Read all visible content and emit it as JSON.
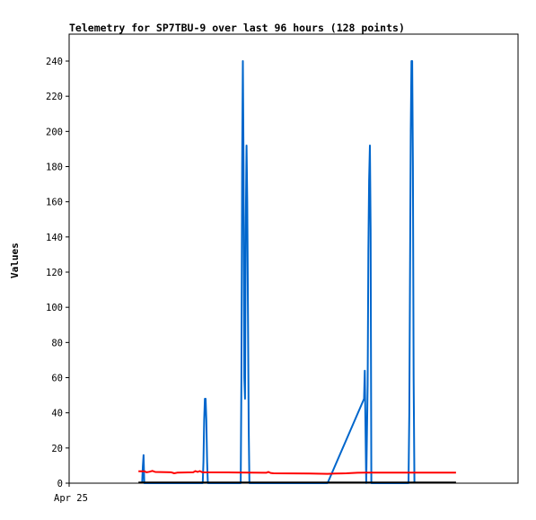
{
  "chart_data": {
    "type": "line",
    "title": "Telemetry for SP7TBU-9 over last 96 hours (128 points)",
    "ylabel": "Values",
    "xlabel": "",
    "x_tick_labels": [
      "Apr 25"
    ],
    "ylim": [
      0,
      255
    ],
    "yticks": [
      0,
      20,
      40,
      60,
      80,
      100,
      120,
      140,
      160,
      180,
      200,
      220,
      240
    ],
    "grid": false,
    "legend": "none",
    "x_unit": "hours from start of displayed window",
    "series": [
      {
        "color": "#0066cc",
        "points": [
          [
            10.0,
            0
          ],
          [
            10.1,
            9.5
          ],
          [
            10.2,
            16
          ],
          [
            10.3,
            0
          ],
          [
            10.4,
            0
          ],
          [
            18.3,
            0
          ],
          [
            18.4,
            12
          ],
          [
            18.5,
            36
          ],
          [
            18.6,
            48
          ],
          [
            18.7,
            48
          ],
          [
            18.8,
            36
          ],
          [
            18.9,
            12
          ],
          [
            19.0,
            0
          ],
          [
            23.5,
            0
          ],
          [
            23.6,
            60
          ],
          [
            23.7,
            180
          ],
          [
            23.8,
            240
          ],
          [
            23.9,
            180
          ],
          [
            24.0,
            60
          ],
          [
            24.1,
            48
          ],
          [
            24.2,
            144
          ],
          [
            24.3,
            192
          ],
          [
            24.4,
            160
          ],
          [
            24.5,
            96
          ],
          [
            24.6,
            32
          ],
          [
            24.7,
            0
          ],
          [
            35.4,
            0
          ],
          [
            40.4,
            48
          ],
          [
            40.5,
            64
          ],
          [
            40.6,
            32
          ],
          [
            40.7,
            0
          ],
          [
            40.9,
            56
          ],
          [
            41.0,
            132
          ],
          [
            41.1,
            172
          ],
          [
            41.2,
            192
          ],
          [
            41.3,
            144
          ],
          [
            41.4,
            0
          ],
          [
            46.5,
            0
          ],
          [
            46.6,
            40
          ],
          [
            46.7,
            120
          ],
          [
            46.8,
            200
          ],
          [
            46.9,
            240
          ],
          [
            47.0,
            240
          ],
          [
            47.1,
            180
          ],
          [
            47.2,
            60
          ],
          [
            47.3,
            0
          ]
        ]
      },
      {
        "color": "#ff0000",
        "points": [
          [
            9.5,
            6.8
          ],
          [
            10.3,
            6.8
          ],
          [
            10.6,
            6.2
          ],
          [
            11.0,
            6.5
          ],
          [
            11.4,
            7.0
          ],
          [
            11.8,
            6.4
          ],
          [
            14.0,
            6.2
          ],
          [
            14.4,
            5.6
          ],
          [
            14.8,
            6.0
          ],
          [
            17.0,
            6.2
          ],
          [
            17.3,
            6.9
          ],
          [
            17.6,
            6.4
          ],
          [
            17.9,
            6.9
          ],
          [
            18.2,
            6.3
          ],
          [
            18.5,
            6.2
          ],
          [
            23.0,
            6.1
          ],
          [
            27.0,
            5.9
          ],
          [
            27.3,
            6.4
          ],
          [
            27.6,
            5.8
          ],
          [
            28.0,
            5.6
          ],
          [
            33.0,
            5.5
          ],
          [
            35.4,
            5.3
          ],
          [
            36.5,
            5.5
          ],
          [
            38.0,
            5.6
          ],
          [
            39.5,
            5.9
          ],
          [
            40.5,
            6.0
          ],
          [
            46.0,
            6.0
          ],
          [
            53.0,
            6.0
          ]
        ]
      },
      {
        "color": "#000000",
        "points": [
          [
            9.5,
            0.4
          ],
          [
            53.0,
            0.4
          ]
        ]
      }
    ],
    "x_range": [
      0,
      61.5
    ]
  }
}
